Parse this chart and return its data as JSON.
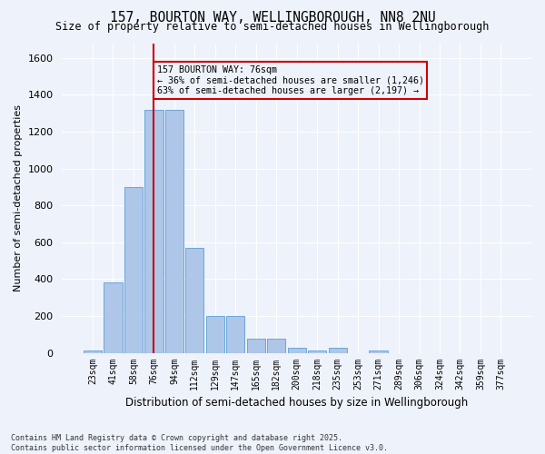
{
  "title": "157, BOURTON WAY, WELLINGBOROUGH, NN8 2NU",
  "subtitle": "Size of property relative to semi-detached houses in Wellingborough",
  "xlabel": "Distribution of semi-detached houses by size in Wellingborough",
  "ylabel": "Number of semi-detached properties",
  "footnote": "Contains HM Land Registry data © Crown copyright and database right 2025.\nContains public sector information licensed under the Open Government Licence v3.0.",
  "categories": [
    "23sqm",
    "41sqm",
    "58sqm",
    "76sqm",
    "94sqm",
    "112sqm",
    "129sqm",
    "147sqm",
    "165sqm",
    "182sqm",
    "200sqm",
    "218sqm",
    "235sqm",
    "253sqm",
    "271sqm",
    "289sqm",
    "306sqm",
    "324sqm",
    "342sqm",
    "359sqm",
    "377sqm"
  ],
  "values": [
    15,
    380,
    900,
    1320,
    1320,
    570,
    200,
    200,
    75,
    75,
    25,
    15,
    25,
    0,
    15,
    0,
    0,
    0,
    0,
    0,
    0
  ],
  "bar_color": "#aec6e8",
  "bar_edge_color": "#5a9fd4",
  "highlight_index": 3,
  "highlight_color": "#cc0000",
  "ylim": [
    0,
    1680
  ],
  "yticks": [
    0,
    200,
    400,
    600,
    800,
    1000,
    1200,
    1400,
    1600
  ],
  "annotation_title": "157 BOURTON WAY: 76sqm",
  "annotation_line1": "← 36% of semi-detached houses are smaller (1,246)",
  "annotation_line2": "63% of semi-detached houses are larger (2,197) →",
  "annotation_box_color": "#cc0000",
  "background_color": "#eef2fb",
  "grid_color": "#ffffff"
}
